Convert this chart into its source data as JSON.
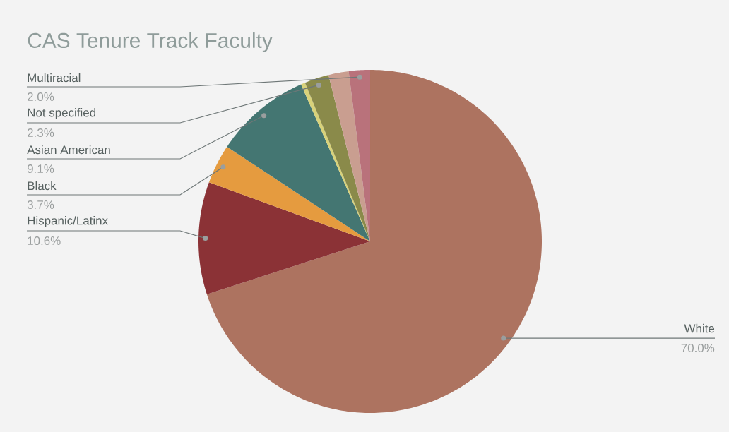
{
  "chart_data": {
    "type": "pie",
    "title": "CAS Tenure Track Faculty",
    "categories": [
      "White",
      "Hispanic/Latinx",
      "Black",
      "Asian American",
      null,
      "Not specified",
      null,
      "Multiracial"
    ],
    "values": [
      70.0,
      10.6,
      3.7,
      9.1,
      0.4,
      2.3,
      1.9,
      2.0
    ],
    "colors": [
      "#ad7360",
      "#8b3236",
      "#e59b3f",
      "#447672",
      "#d8d27a",
      "#8a8a4a",
      "#c99e90",
      "#b9727b"
    ],
    "value_labels": [
      "70.0%",
      "10.6%",
      "3.7%",
      "9.1%",
      null,
      "2.3%",
      null,
      "2.0%"
    ]
  }
}
